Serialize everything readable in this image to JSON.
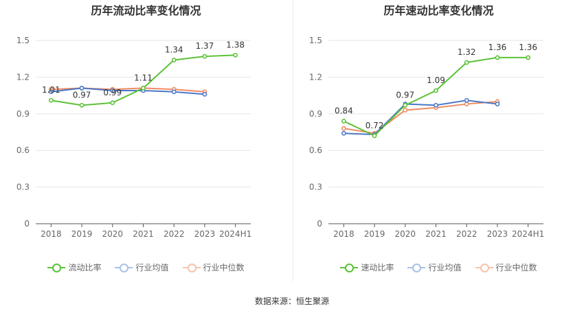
{
  "source_label": "数据来源：恒生聚源",
  "chart_data": [
    {
      "type": "line",
      "title": "历年流动比率变化情况",
      "categories": [
        "2018",
        "2019",
        "2020",
        "2021",
        "2022",
        "2023",
        "2024H1"
      ],
      "ylim": [
        0,
        1.5
      ],
      "yticks": [
        "0",
        "0.3",
        "0.6",
        "0.9",
        "1.2",
        "1.5"
      ],
      "grid": true,
      "legend_position": "bottom",
      "series": [
        {
          "name": "流动比率",
          "color": "#5bc236",
          "values": [
            1.01,
            0.97,
            0.99,
            1.11,
            1.34,
            1.37,
            1.38
          ],
          "labels": [
            "1.01",
            "0.97",
            "0.99",
            "1.11",
            "1.34",
            "1.37",
            "1.38"
          ]
        },
        {
          "name": "行业均值",
          "color": "#4a78c8",
          "values": [
            1.08,
            1.11,
            1.09,
            1.09,
            1.08,
            1.06,
            null
          ]
        },
        {
          "name": "行业中位数",
          "color": "#f08a62",
          "values": [
            1.1,
            1.11,
            1.1,
            1.11,
            1.1,
            1.08,
            null
          ]
        }
      ]
    },
    {
      "type": "line",
      "title": "历年速动比率变化情况",
      "categories": [
        "2018",
        "2019",
        "2020",
        "2021",
        "2022",
        "2023",
        "2024H1"
      ],
      "ylim": [
        0,
        1.5
      ],
      "yticks": [
        "0",
        "0.3",
        "0.6",
        "0.9",
        "1.2",
        "1.5"
      ],
      "grid": true,
      "legend_position": "bottom",
      "series": [
        {
          "name": "速动比率",
          "color": "#5bc236",
          "values": [
            0.84,
            0.72,
            0.97,
            1.09,
            1.32,
            1.36,
            1.36
          ],
          "labels": [
            "0.84",
            "0.72",
            "0.97",
            "1.09",
            "1.32",
            "1.36",
            "1.36"
          ]
        },
        {
          "name": "行业均值",
          "color": "#4a78c8",
          "values": [
            0.74,
            0.73,
            0.98,
            0.97,
            1.01,
            0.98,
            null
          ]
        },
        {
          "name": "行业中位数",
          "color": "#f08a62",
          "values": [
            0.78,
            0.74,
            0.93,
            0.95,
            0.98,
            1.0,
            null
          ]
        }
      ]
    }
  ]
}
